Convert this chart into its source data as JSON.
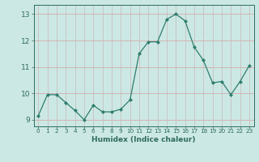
{
  "x": [
    0,
    1,
    2,
    3,
    4,
    5,
    6,
    7,
    8,
    9,
    10,
    11,
    12,
    13,
    14,
    15,
    16,
    17,
    18,
    19,
    20,
    21,
    22,
    23
  ],
  "y": [
    9.15,
    9.95,
    9.95,
    9.65,
    9.35,
    9.0,
    9.55,
    9.3,
    9.3,
    9.4,
    9.75,
    11.5,
    11.95,
    11.95,
    12.8,
    13.0,
    12.75,
    11.75,
    11.25,
    10.4,
    10.45,
    9.95,
    10.45,
    11.05
  ],
  "line_color": "#2e7d6e",
  "marker": "D",
  "marker_size": 2.0,
  "bg_color": "#cce8e4",
  "grid_color_h": "#d4a0a0",
  "grid_color_v": "#c8b8b8",
  "xlabel": "Humidex (Indice chaleur)",
  "ylim": [
    8.75,
    13.35
  ],
  "xlim": [
    -0.5,
    23.5
  ],
  "yticks": [
    9,
    10,
    11,
    12,
    13
  ],
  "xticks": [
    0,
    1,
    2,
    3,
    4,
    5,
    6,
    7,
    8,
    9,
    10,
    11,
    12,
    13,
    14,
    15,
    16,
    17,
    18,
    19,
    20,
    21,
    22,
    23
  ],
  "tick_color": "#2e6b5e",
  "label_color": "#2e6b5e",
  "axis_color": "#2e6b5e",
  "xtick_fontsize": 5.2,
  "ytick_fontsize": 6.5,
  "xlabel_fontsize": 6.5
}
